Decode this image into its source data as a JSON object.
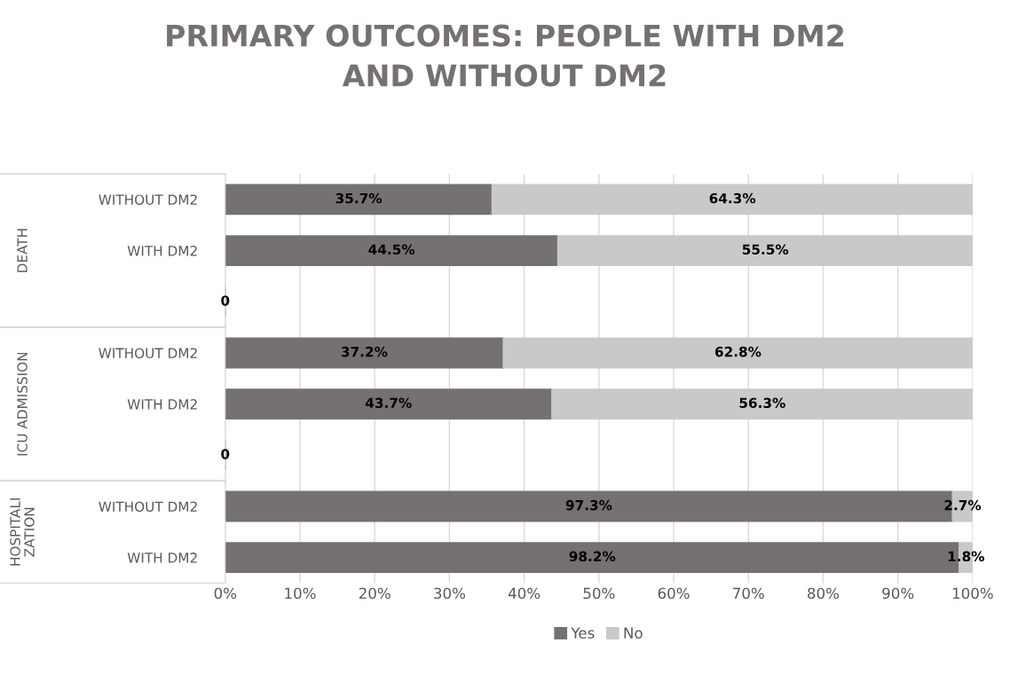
{
  "chart_data": {
    "type": "bar",
    "orientation": "horizontal",
    "stacked": true,
    "title": "PRIMARY OUTCOMES: PEOPLE WITH DM2\nAND WITHOUT DM2",
    "categories": [
      "WITHOUT DM2",
      "WITH DM2",
      null,
      "WITHOUT DM2",
      "WITH DM2",
      null,
      "WITHOUT DM2",
      "WITH DM2"
    ],
    "annotations": [
      "DEATH",
      "ICU ADMISSION",
      "HOSPITALI\nZATION"
    ],
    "series": [
      {
        "name": "Yes",
        "color": "#767171",
        "values": [
          35.7,
          44.5,
          0,
          37.2,
          43.7,
          0,
          97.3,
          98.2
        ],
        "value_labels": [
          "35.7%",
          "44.5%",
          "0",
          "37.2%",
          "43.7%",
          "0",
          "97.3%",
          "98.2%"
        ]
      },
      {
        "name": "No",
        "color": "#c9c9c9",
        "values": [
          64.3,
          55.5,
          0,
          62.8,
          56.3,
          0,
          2.7,
          1.8
        ],
        "value_labels": [
          "64.3%",
          "55.5%",
          null,
          "62.8%",
          "56.3%",
          null,
          "2.7%",
          "1.8%"
        ]
      }
    ],
    "xlim": [
      0,
      100
    ],
    "xticks": [
      {
        "value": 0,
        "label": "0%"
      },
      {
        "value": 10,
        "label": "10%"
      },
      {
        "value": 20,
        "label": "20%"
      },
      {
        "value": 30,
        "label": "30%"
      },
      {
        "value": 40,
        "label": "40%"
      },
      {
        "value": 50,
        "label": "50%"
      },
      {
        "value": 60,
        "label": "60%"
      },
      {
        "value": 70,
        "label": "70%"
      },
      {
        "value": 80,
        "label": "80%"
      },
      {
        "value": 90,
        "label": "90%"
      },
      {
        "value": 100,
        "label": "100%"
      }
    ],
    "grid": "x",
    "legend": "bottom"
  }
}
